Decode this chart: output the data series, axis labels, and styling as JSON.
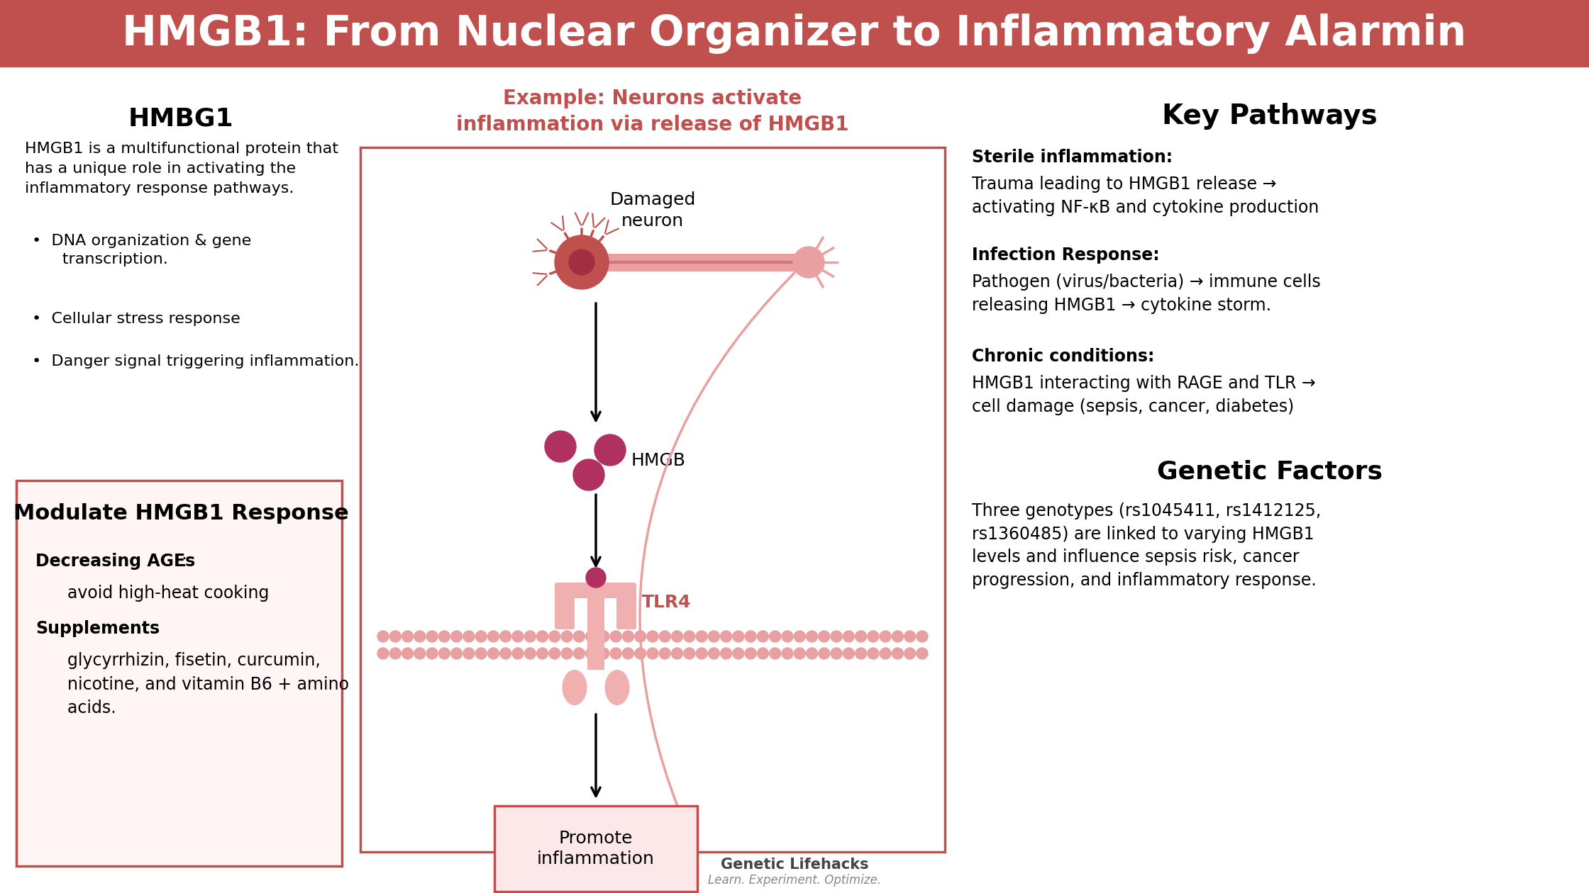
{
  "title": "HMGB1: From Nuclear Organizer to Inflammatory Alarmin",
  "title_bg": "#c0504d",
  "title_color": "#ffffff",
  "bg_color": "#ffffff",
  "accent_color": "#c0504d",
  "section_left_title": "HMBG1",
  "section_left_body": "HMGB1 is a multifunctional protein that\nhas a unique role in activating the\ninflammatory response pathways.",
  "section_left_bullets": [
    "DNA organization & gene\n      transcription.",
    "Cellular stress response",
    "Danger signal triggering inflammation."
  ],
  "section_modulate_title": "Modulate HMGB1 Response",
  "section_modulate_line1_bold": "Decreasing AGEs",
  "section_modulate_line1_rest": ":",
  "section_modulate_line2": "      avoid high-heat cooking",
  "section_modulate_line3_bold": "Supplements",
  "section_modulate_line3_rest": ":",
  "section_modulate_line4": "      glycyrrhizin, fisetin, curcumin,\n      nicotine, and vitamin B6 + amino\n      acids.",
  "section_center_example_title": "Example: Neurons activate\ninflammation via release of HMGB1",
  "section_right_title": "Key Pathways",
  "section_right_sterile_bold": "Sterile inflammation:",
  "section_right_sterile": "Trauma leading to HMGB1 release →\nactivating NF-κB and cytokine production",
  "section_right_infection_bold": "Infection Response:",
  "section_right_infection": "Pathogen (virus/bacteria) → immune cells\nreleasing HMGB1 → cytokine storm.",
  "section_right_chronic_bold": "Chronic conditions:",
  "section_right_chronic": "HMGB1 interacting with RAGE and TLR →\ncell damage (sepsis, cancer, diabetes)",
  "section_right_genetic_title": "Genetic Factors",
  "section_right_genetic": "Three genotypes (rs1045411, rs1412125,\nrs1360485) are linked to varying HMGB1\nlevels and influence sepsis risk, cancer\nprogression, and inflammatory response.",
  "footer_logo": "Genetic Lifehacks",
  "footer_tagline": "Learn. Experiment. Optimize.",
  "neuron_color": "#c0504d",
  "neuron_light": "#e8a0a0",
  "dot_color": "#b03060",
  "membrane_color": "#e8a0a0",
  "tlr_color": "#f0b0b0"
}
